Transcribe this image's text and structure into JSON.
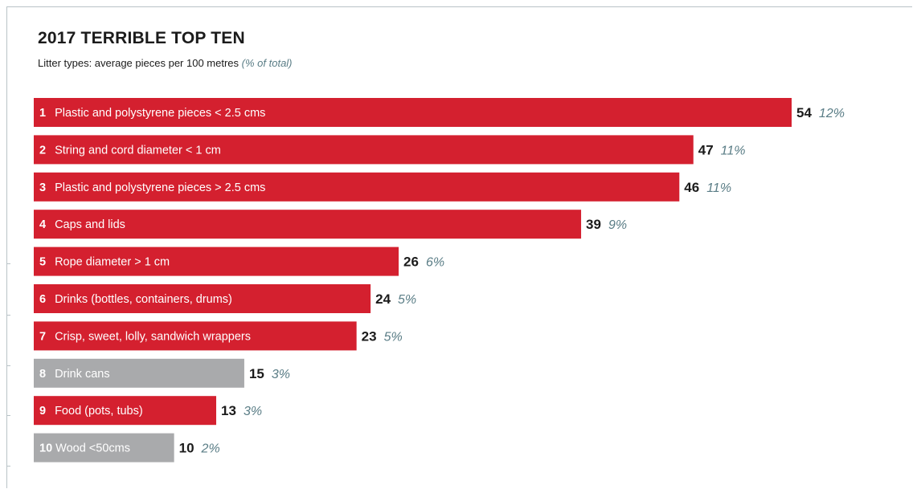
{
  "chart_data": {
    "type": "bar",
    "orientation": "horizontal",
    "title": "2017 TERRIBLE TOP TEN",
    "subtitle": "Litter types: average pieces per 100 metres",
    "subtitle_note": "(% of total)",
    "categories": [
      "Plastic and polystyrene pieces < 2.5 cms",
      "String and cord diameter < 1 cm",
      "Plastic and polystyrene pieces > 2.5 cms",
      "Caps and lids",
      "Rope diameter > 1 cm",
      "Drinks (bottles, containers, drums)",
      "Crisp, sweet, lolly, sandwich wrappers",
      "Drink cans",
      "Food (pots, tubs)",
      "Wood <50cms"
    ],
    "ranks": [
      "1",
      "2",
      "3",
      "4",
      "5",
      "6",
      "7",
      "8",
      "9",
      "10"
    ],
    "values": [
      54,
      47,
      46,
      39,
      26,
      24,
      23,
      15,
      13,
      10
    ],
    "percent_labels": [
      "12%",
      "11%",
      "11%",
      "9%",
      "6%",
      "5%",
      "5%",
      "3%",
      "3%",
      "2%"
    ],
    "bar_colors": [
      "#d4202f",
      "#d4202f",
      "#d4202f",
      "#d4202f",
      "#d4202f",
      "#d4202f",
      "#d4202f",
      "#a9aaac",
      "#d4202f",
      "#a9aaac"
    ],
    "grid": false,
    "legend": "none"
  }
}
